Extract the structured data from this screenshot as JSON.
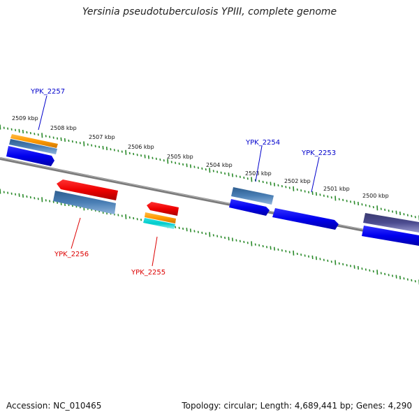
{
  "title": "Yersinia pseudotuberculosis YPIII, complete genome",
  "footer": {
    "accession": "Accession: NC_010465",
    "summary": "Topology: circular; Length: 4,689,441 bp; Genes: 4,290"
  },
  "ruler": {
    "labels": [
      "2509 kbp",
      "2508 kbp",
      "2507 kbp",
      "2506 kbp",
      "2505 kbp",
      "2504 kbp",
      "2503 kbp",
      "2502 kbp",
      "2501 kbp",
      "2500 kbp"
    ]
  },
  "genes": [
    {
      "name": "YPK_2257",
      "strand": "plus",
      "color": "#0000cc"
    },
    {
      "name": "YPK_2256",
      "strand": "minus",
      "color": "#dd0000"
    },
    {
      "name": "YPK_2255",
      "strand": "minus",
      "color": "#dd0000"
    },
    {
      "name": "YPK_2254",
      "strand": "plus",
      "color": "#0000cc"
    },
    {
      "name": "YPK_2253",
      "strand": "plus",
      "color": "#0000cc"
    }
  ],
  "colors": {
    "backbone": "#808080",
    "tick": "#2a8a2a",
    "cds_plus": "#0000ee",
    "cds_minus": "#ee0000",
    "feature_orange": "#ff9900",
    "feature_steelblue": "#4a7fb5",
    "feature_cyan": "#00cccc",
    "feature_purple": "#4b4b8f"
  }
}
